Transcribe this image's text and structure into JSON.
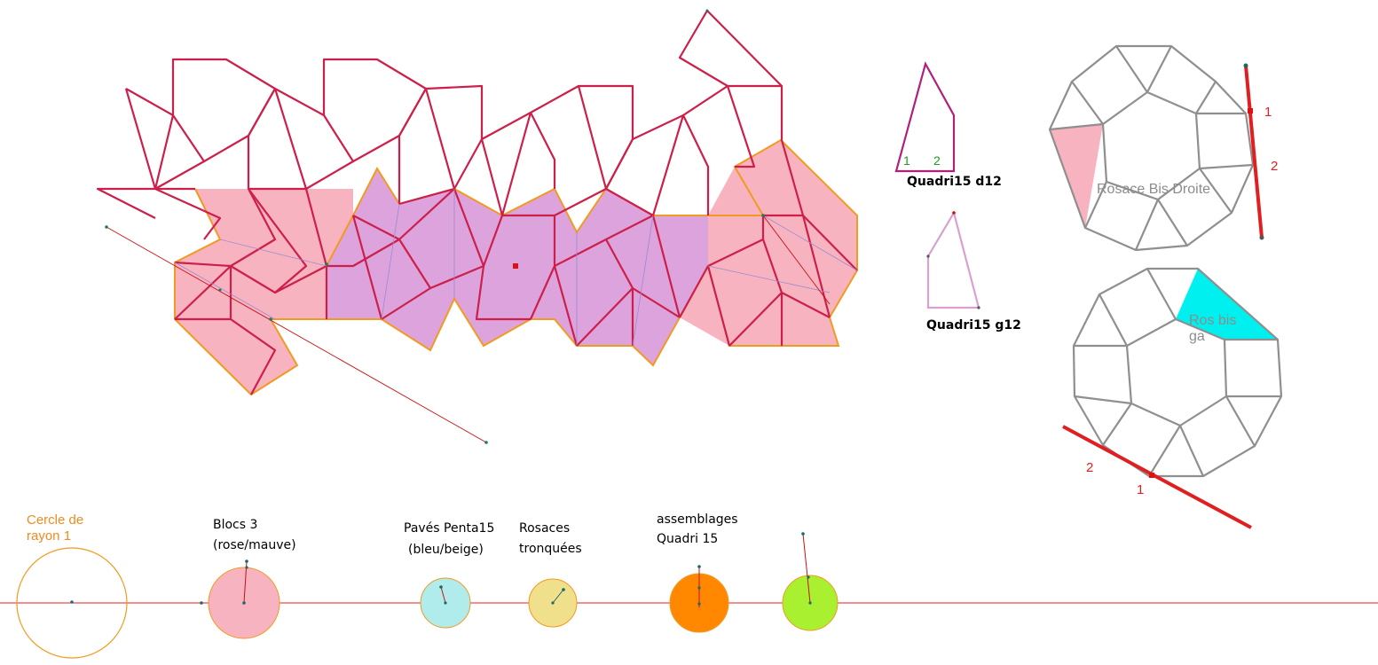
{
  "colors": {
    "crimson": "#cc1f4a",
    "orange": "#f29a1f",
    "pink_fill": "#f8b3c0",
    "mauve_fill": "#dda3dd",
    "gray_edge": "#8f8f8f",
    "cyan_fill": "#00f0f0",
    "red_line": "#e02020",
    "magenta": "#b0207a",
    "light_mauve": "#d9a0d0"
  },
  "labels": {
    "quadri_d12": "Quadri15 d12",
    "quadri_g12": "Quadri15 g12",
    "quadri_d12_num1": "1",
    "quadri_d12_num2": "2",
    "rosace_droite": "Rosace Bis Droite",
    "rosace_gauche_1": "Ros bis",
    "rosace_gauche_2": "ga",
    "top_num1": "1",
    "top_num2": "2",
    "bottom_num1": "1",
    "bottom_num2": "2"
  },
  "sliders": {
    "cercle": {
      "line1": "Cercle de",
      "line2": "rayon 1",
      "color": "#ffffff"
    },
    "blocs3": {
      "line1": "Blocs 3",
      "line2": "(rose/mauve)",
      "color": "#f8b3c0"
    },
    "paves": {
      "line1": "Pavés Penta15",
      "line2": "(bleu/beige)",
      "color": "#b0ecec"
    },
    "rosaces": {
      "line1": "Rosaces",
      "line2": "tronquées",
      "color": "#f0e08c"
    },
    "assemblages": {
      "line1": "assemblages",
      "line2": "Quadri 15",
      "color": "#ff8800"
    },
    "green": {
      "color": "#a8f030"
    }
  }
}
